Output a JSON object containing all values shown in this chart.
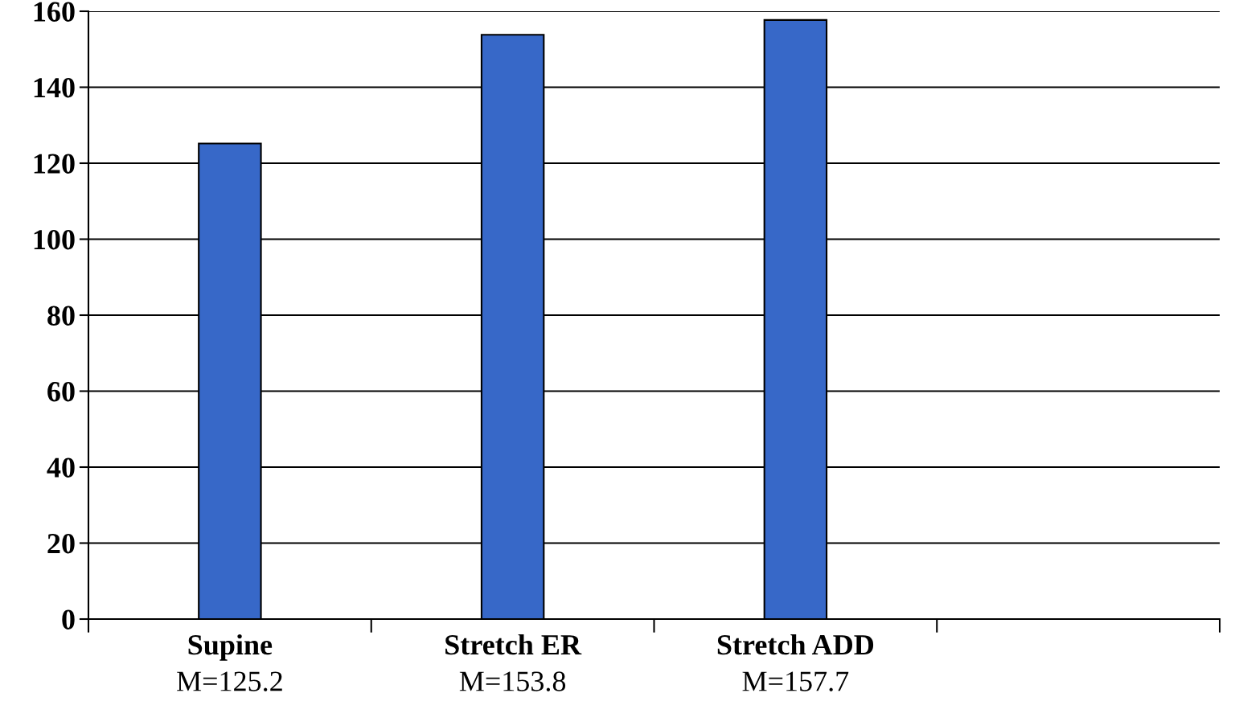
{
  "chart_data": {
    "type": "bar",
    "categories": [
      "Supine",
      "Stretch ER",
      "Stretch ADD",
      null
    ],
    "values": [
      125.2,
      153.8,
      157.7,
      null
    ],
    "value_labels": [
      "M=125.2",
      "M=153.8",
      "M=157.7",
      null
    ],
    "color": "#3768c8",
    "ylim": [
      0,
      160
    ],
    "yticks": [
      0,
      20,
      40,
      60,
      80,
      100,
      120,
      140,
      160
    ],
    "grid": "y",
    "legend": false
  }
}
